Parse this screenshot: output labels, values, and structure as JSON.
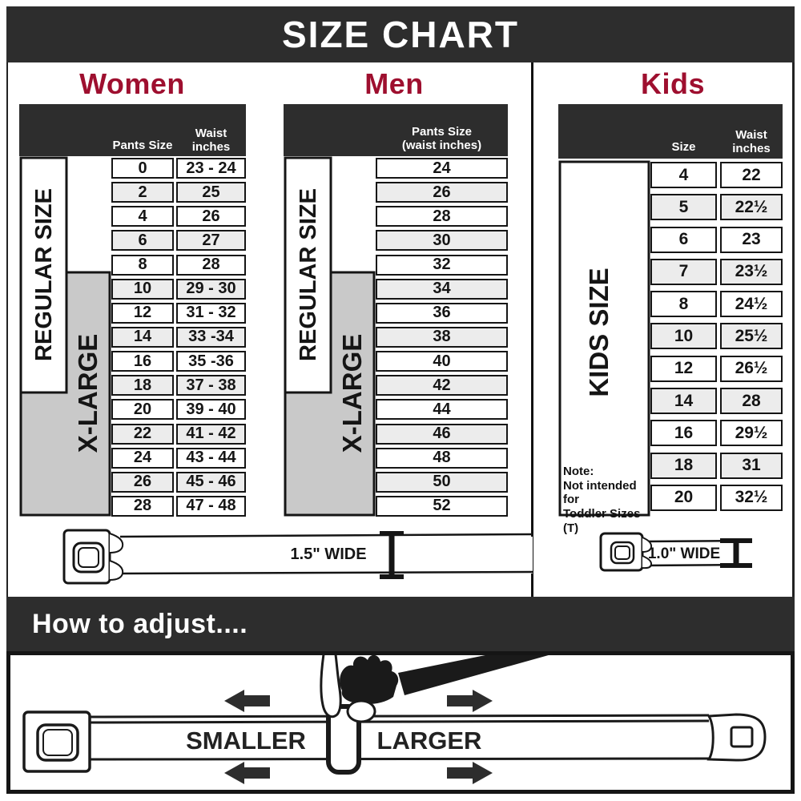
{
  "page_title": "SIZE CHART",
  "colors": {
    "accent_red": "#9e0f2f",
    "bar_dark": "#2d2d2d",
    "row_alt": "#ececec",
    "xlarge_gray": "#c9c9c9",
    "line_black": "#151515"
  },
  "women": {
    "title": "Women",
    "col1_header": "Pants Size",
    "col2_header": "Waist\ninches",
    "regular_label": "REGULAR SIZE",
    "xlarge_label": "X-LARGE",
    "rows": [
      {
        "size": "0",
        "waist": "23 - 24"
      },
      {
        "size": "2",
        "waist": "25"
      },
      {
        "size": "4",
        "waist": "26"
      },
      {
        "size": "6",
        "waist": "27"
      },
      {
        "size": "8",
        "waist": "28"
      },
      {
        "size": "10",
        "waist": "29 - 30"
      },
      {
        "size": "12",
        "waist": "31 - 32"
      },
      {
        "size": "14",
        "waist": "33 -34"
      },
      {
        "size": "16",
        "waist": "35 -36"
      },
      {
        "size": "18",
        "waist": "37 - 38"
      },
      {
        "size": "20",
        "waist": "39 - 40"
      },
      {
        "size": "22",
        "waist": "41 - 42"
      },
      {
        "size": "24",
        "waist": "43 - 44"
      },
      {
        "size": "26",
        "waist": "45 - 46"
      },
      {
        "size": "28",
        "waist": "47 - 48"
      }
    ]
  },
  "men": {
    "title": "Men",
    "header": "Pants Size\n(waist inches)",
    "regular_label": "REGULAR SIZE",
    "xlarge_label": "X-LARGE",
    "rows": [
      "24",
      "26",
      "28",
      "30",
      "32",
      "34",
      "36",
      "38",
      "40",
      "42",
      "44",
      "46",
      "48",
      "50",
      "52"
    ]
  },
  "kids": {
    "title": "Kids",
    "col1_header": "Size",
    "col2_header": "Waist\ninches",
    "label": "KIDS SIZE",
    "note": "Note:\nNot intended for\nToddler Sizes (T)",
    "rows": [
      {
        "size": "4",
        "waist": "22"
      },
      {
        "size": "5",
        "waist": "22½"
      },
      {
        "size": "6",
        "waist": "23"
      },
      {
        "size": "7",
        "waist": "23½"
      },
      {
        "size": "8",
        "waist": "24½"
      },
      {
        "size": "10",
        "waist": "25½"
      },
      {
        "size": "12",
        "waist": "26½"
      },
      {
        "size": "14",
        "waist": "28"
      },
      {
        "size": "16",
        "waist": "29½"
      },
      {
        "size": "18",
        "waist": "31"
      },
      {
        "size": "20",
        "waist": "32½"
      }
    ]
  },
  "belts": {
    "adult_width_label": "1.5\" WIDE",
    "kids_width_label": "1.0\" WIDE"
  },
  "adjust": {
    "title": "How to adjust....",
    "smaller_label": "SMALLER",
    "larger_label": "LARGER"
  },
  "chart_data": [
    {
      "type": "table",
      "title": "Women belt size chart",
      "columns": [
        "Pants Size",
        "Waist inches"
      ],
      "rows": [
        [
          "0",
          "23 - 24"
        ],
        [
          "2",
          "25"
        ],
        [
          "4",
          "26"
        ],
        [
          "6",
          "27"
        ],
        [
          "8",
          "28"
        ],
        [
          "10",
          "29 - 30"
        ],
        [
          "12",
          "31 - 32"
        ],
        [
          "14",
          "33 -34"
        ],
        [
          "16",
          "35 -36"
        ],
        [
          "18",
          "37 - 38"
        ],
        [
          "20",
          "39 - 40"
        ],
        [
          "22",
          "41 - 42"
        ],
        [
          "24",
          "43 - 44"
        ],
        [
          "26",
          "45 - 46"
        ],
        [
          "28",
          "47 - 48"
        ]
      ],
      "groups": {
        "REGULAR SIZE": [
          "0",
          "2",
          "4",
          "6",
          "8",
          "10",
          "12",
          "14",
          "16",
          "18"
        ],
        "X-LARGE": [
          "10",
          "12",
          "14",
          "16",
          "18",
          "20",
          "22",
          "24",
          "26",
          "28"
        ]
      },
      "belt_width": "1.5\" WIDE"
    },
    {
      "type": "table",
      "title": "Men belt size chart",
      "columns": [
        "Pants Size (waist inches)"
      ],
      "rows": [
        [
          "24"
        ],
        [
          "26"
        ],
        [
          "28"
        ],
        [
          "30"
        ],
        [
          "32"
        ],
        [
          "34"
        ],
        [
          "36"
        ],
        [
          "38"
        ],
        [
          "40"
        ],
        [
          "42"
        ],
        [
          "44"
        ],
        [
          "46"
        ],
        [
          "48"
        ],
        [
          "50"
        ],
        [
          "52"
        ]
      ],
      "groups": {
        "REGULAR SIZE": [
          "24",
          "26",
          "28",
          "30",
          "32",
          "34"
        ],
        "X-LARGE": [
          "36",
          "38",
          "40",
          "42",
          "44",
          "46",
          "48",
          "50",
          "52"
        ]
      },
      "belt_width": "1.5\" WIDE"
    },
    {
      "type": "table",
      "title": "Kids belt size chart",
      "columns": [
        "Size",
        "Waist inches"
      ],
      "rows": [
        [
          "4",
          "22"
        ],
        [
          "5",
          "22½"
        ],
        [
          "6",
          "23"
        ],
        [
          "7",
          "23½"
        ],
        [
          "8",
          "24½"
        ],
        [
          "10",
          "25½"
        ],
        [
          "12",
          "26½"
        ],
        [
          "14",
          "28"
        ],
        [
          "16",
          "29½"
        ],
        [
          "18",
          "31"
        ],
        [
          "20",
          "32½"
        ]
      ],
      "groups": {
        "KIDS SIZE": [
          "4",
          "5",
          "6",
          "7",
          "8",
          "10",
          "12",
          "14",
          "16",
          "18",
          "20"
        ]
      },
      "note": "Not intended for Toddler Sizes (T)",
      "belt_width": "1.0\" WIDE"
    }
  ]
}
